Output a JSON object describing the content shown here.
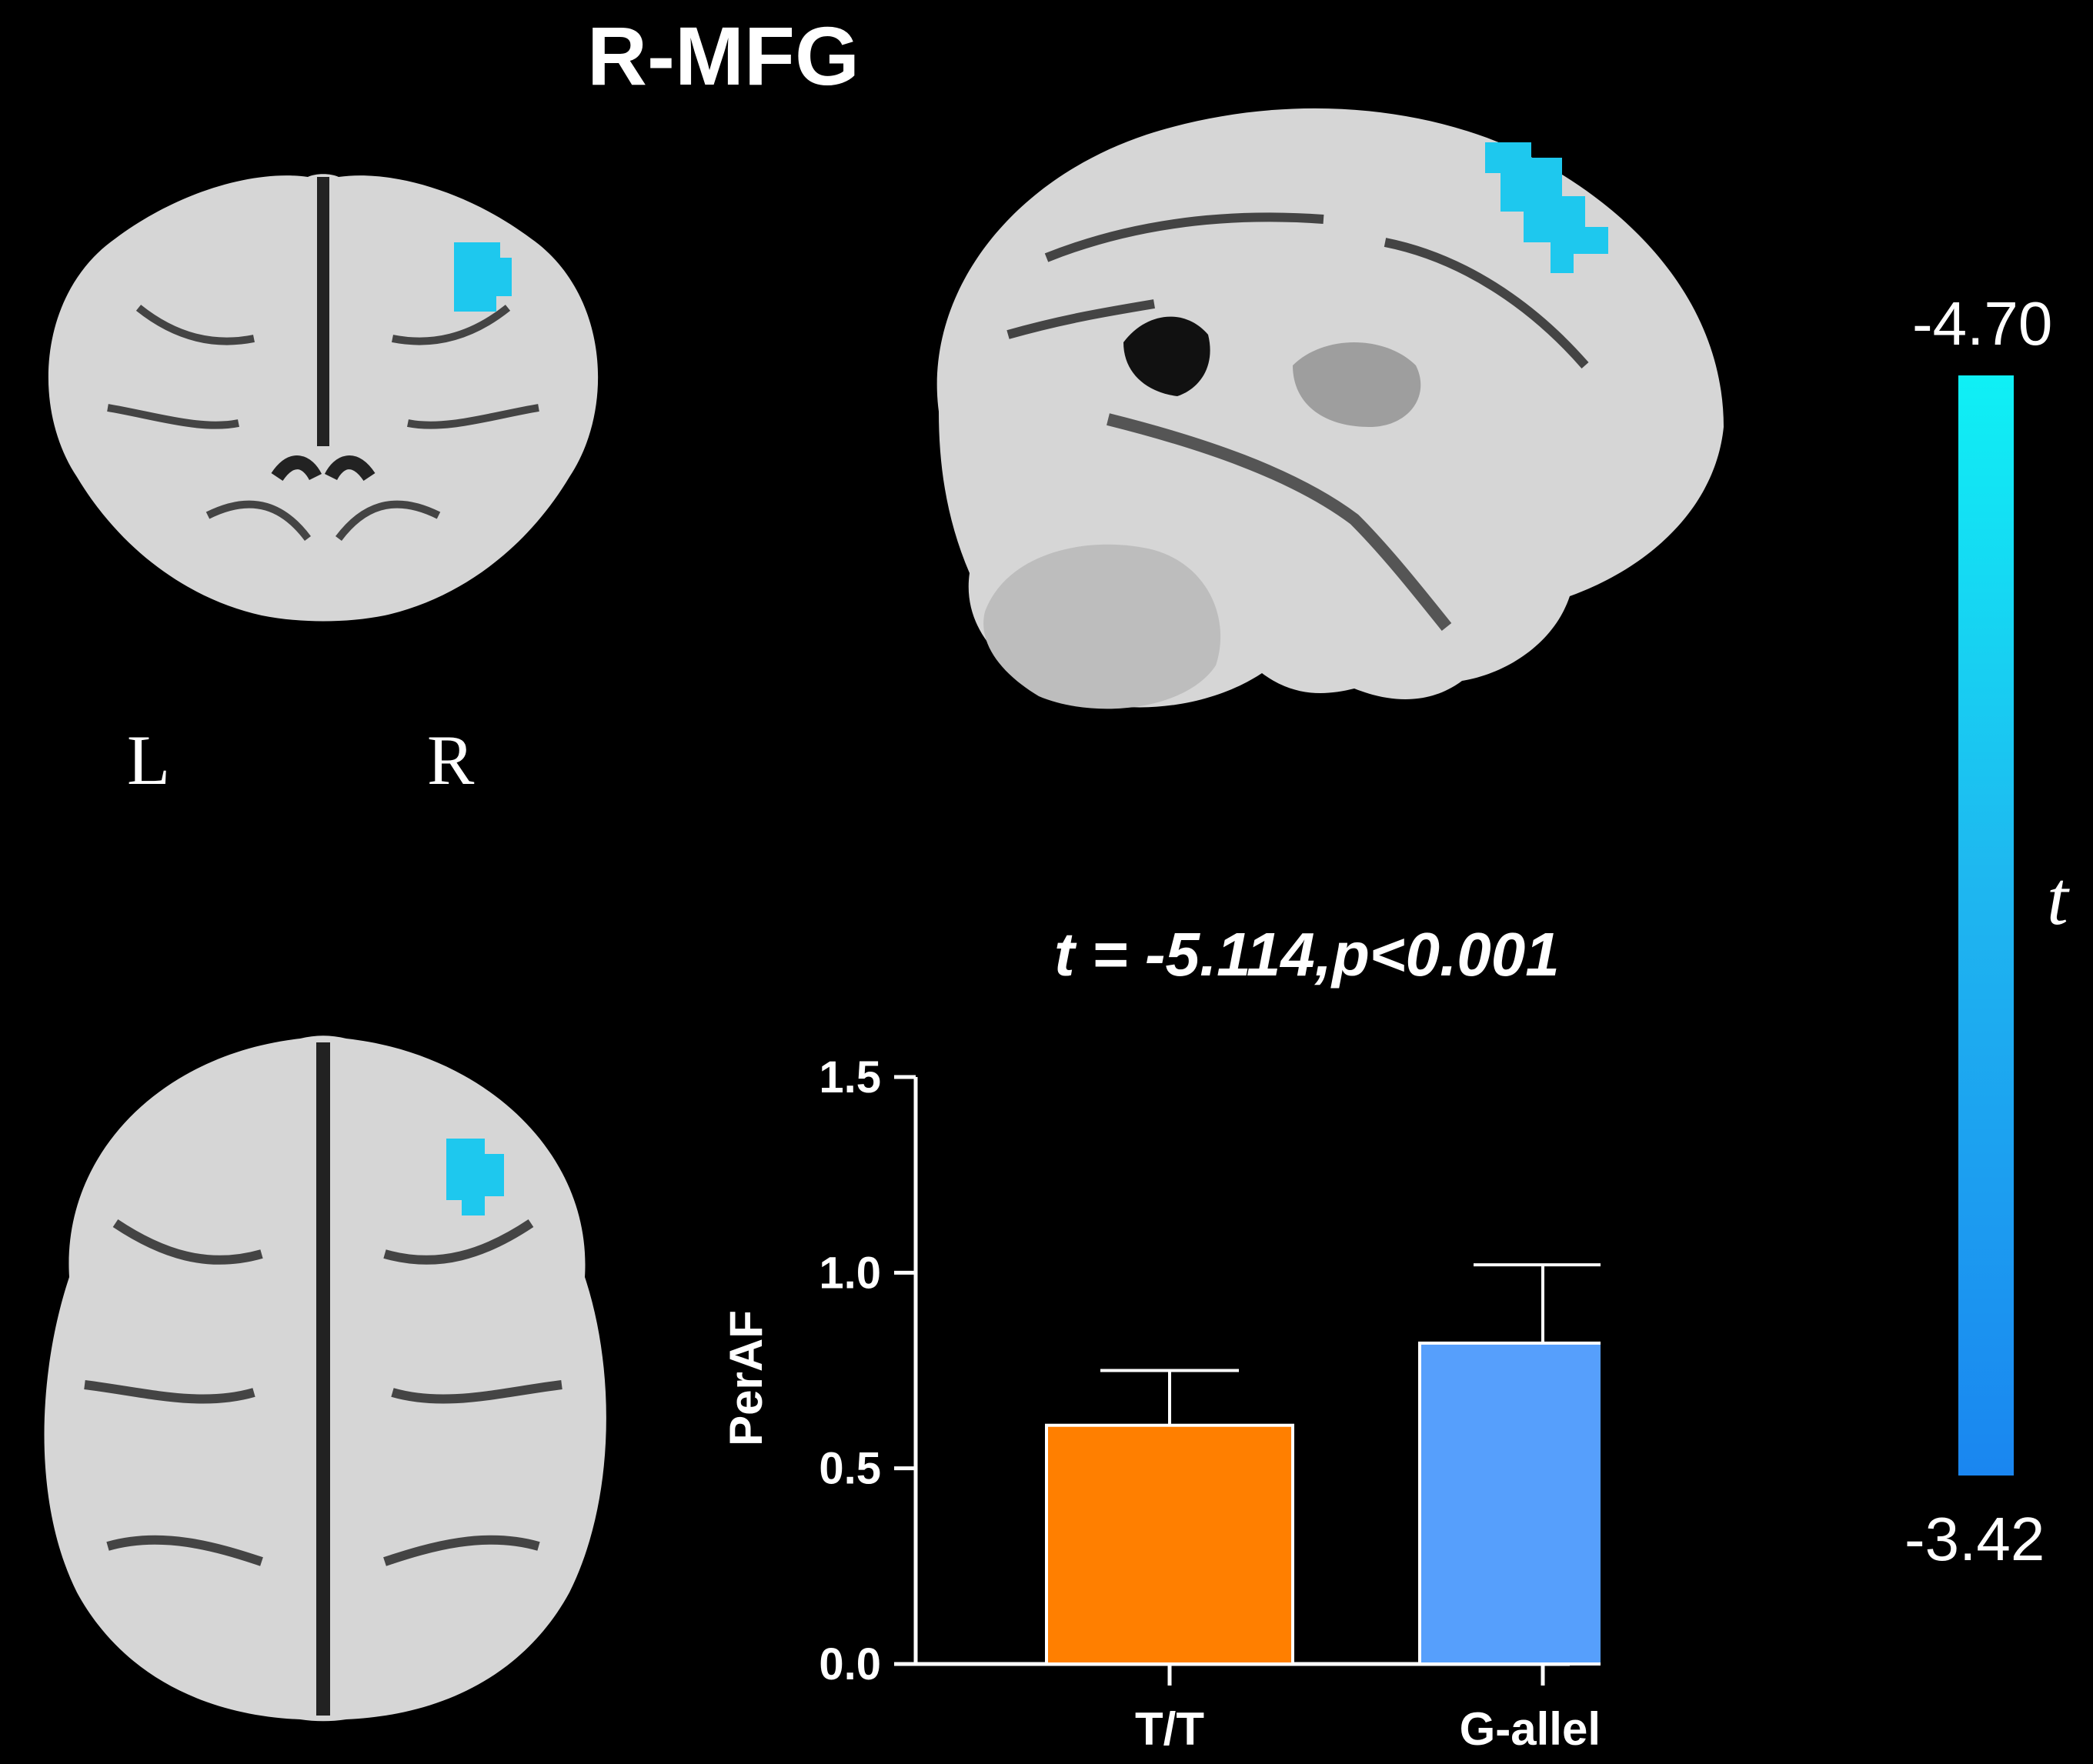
{
  "figure": {
    "title": "R-MFG",
    "orientation": {
      "left": "L",
      "right": "R"
    },
    "colorbar": {
      "max_label": "-4.70",
      "min_label": "-3.42",
      "title": "t",
      "color_top": "#0ff0f5",
      "color_bottom": "#1a86f0"
    },
    "activation_color": "#1ec8ee",
    "stat_text": "t = -5.114,p<0.001"
  },
  "chart_data": {
    "type": "bar",
    "categories": [
      "T/T",
      "G-allele"
    ],
    "values": [
      0.61,
      0.82
    ],
    "errors": [
      0.14,
      0.2
    ],
    "colors": [
      "#ff7f00",
      "#569ffc"
    ],
    "ylabel": "PerAF",
    "ylim": [
      0,
      1.5
    ],
    "yticks": [
      "0.0",
      "0.5",
      "1.0",
      "1.5"
    ]
  }
}
